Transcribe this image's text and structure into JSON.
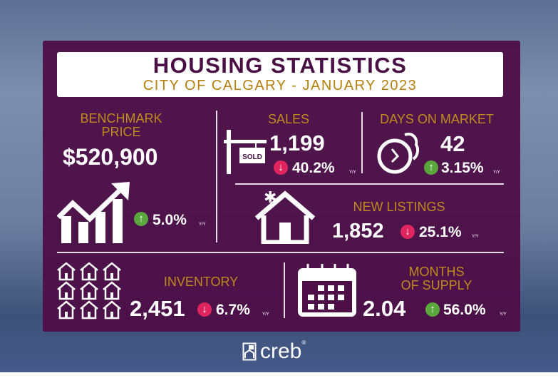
{
  "header": {
    "title": "HOUSING STATISTICS",
    "subtitle": "CITY OF CALGARY - JANUARY 2023"
  },
  "colors": {
    "panel": "#4e0e48",
    "gold": "#c08a1c",
    "up": "#5aa83c",
    "down": "#e0245e"
  },
  "benchmark": {
    "label1": "BENCHMARK",
    "label2": "PRICE",
    "value": "$520,900",
    "change": "5.0%",
    "direction": "up",
    "yy": "Y/Y",
    "icon": "growth-chart-icon"
  },
  "sales": {
    "label": "SALES",
    "value": "1,199",
    "change": "40.2%",
    "direction": "down",
    "yy": "Y/Y",
    "icon": "sold-sign-icon",
    "sign": "SOLD"
  },
  "days": {
    "label": "DAYS ON MARKET",
    "value": "42",
    "change": "3.15%",
    "direction": "up",
    "yy": "Y/Y",
    "icon": "fast-clock-icon"
  },
  "listings": {
    "label": "NEW LISTINGS",
    "value": "1,852",
    "change": "25.1%",
    "direction": "down",
    "yy": "Y/Y",
    "icon": "new-house-icon"
  },
  "inventory": {
    "label": "INVENTORY",
    "value": "2,451",
    "change": "6.7%",
    "direction": "down",
    "yy": "Y/Y",
    "icon": "houses-grid-icon"
  },
  "supply": {
    "label1": "MONTHS",
    "label2": "OF SUPPLY",
    "value": "2.04",
    "change": "56.0%",
    "direction": "up",
    "yy": "Y/Y",
    "icon": "calendar-icon"
  },
  "footer": {
    "logo": "creb",
    "reg": "®"
  }
}
